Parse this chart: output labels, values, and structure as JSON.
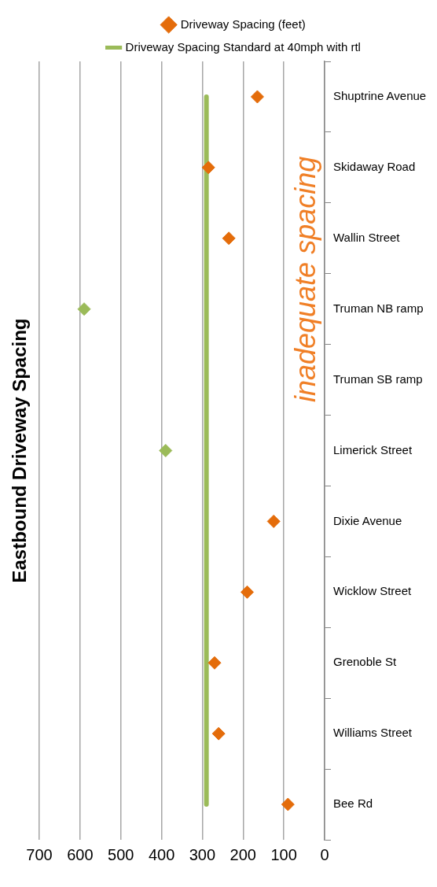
{
  "chart_data": {
    "type": "line",
    "title": "Eastbound Driveway Spacing",
    "orientation": "horizontal",
    "categories": [
      "Shuptrine Avenue",
      "Skidaway Road",
      "Wallin Street",
      "Truman NB ramp",
      "Truman SB ramp",
      "Limerick Street",
      "Dixie Avenue",
      "Wicklow Street",
      "Grenoble St",
      "Williams Street",
      "Bee Rd"
    ],
    "series": [
      {
        "name": "Driveway Spacing (feet)",
        "type": "scatter",
        "marker": "diamond",
        "color": "#e46c0a",
        "colors": [
          "#e46c0a",
          "#e46c0a",
          "#e46c0a",
          "#9bbb59",
          "#e46c0a",
          "#9bbb59",
          "#e46c0a",
          "#e46c0a",
          "#e46c0a",
          "#e46c0a",
          "#e46c0a"
        ],
        "values": [
          165,
          285,
          235,
          590,
          null,
          390,
          125,
          190,
          270,
          260,
          90
        ]
      },
      {
        "name": "Driveway Spacing Standard at 40mph with rtl",
        "marker": "none",
        "color": "#9bbb59",
        "values": [
          290,
          290,
          290,
          290,
          290,
          290,
          290,
          290,
          290,
          290,
          290
        ]
      }
    ],
    "xlim": [
      700,
      0
    ],
    "xticks": [
      0,
      100,
      200,
      300,
      400,
      500,
      600,
      700
    ],
    "grid": "x",
    "legend": "top",
    "annotations": [
      "inadequate spacing"
    ]
  }
}
